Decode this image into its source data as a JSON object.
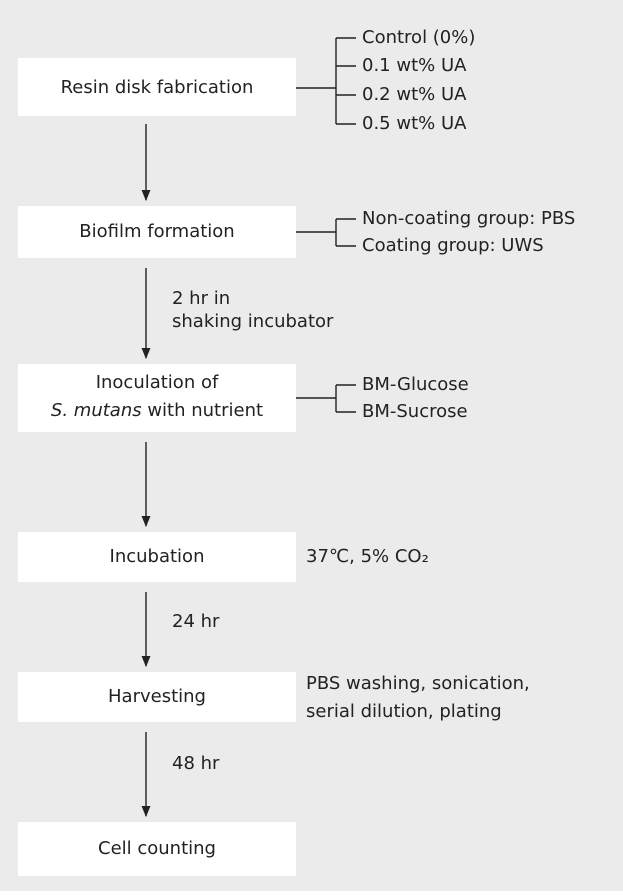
{
  "steps": [
    {
      "label": "Resin disk fabrication",
      "branches": [
        "Control (0%)",
        "0.1 wt% UA",
        "0.2 wt% UA",
        "0.5 wt% UA"
      ]
    },
    {
      "label": "Biofilm formation",
      "branches": [
        "Non-coating group: PBS",
        "Coating group: UWS"
      ]
    },
    {
      "label": [
        "Inoculation of",
        [
          "S. mutans",
          " with nutrient"
        ]
      ],
      "branches": [
        "BM-Glucose",
        "BM-Sucrose"
      ]
    },
    {
      "label": "Incubation",
      "note": [
        "37℃, 5% CO₂"
      ]
    },
    {
      "label": "Harvesting",
      "note": [
        "PBS washing, sonication,",
        "serial dilution, plating"
      ]
    },
    {
      "label": "Cell counting"
    }
  ],
  "arrows": [
    [],
    [
      "2 hr in",
      "shaking incubator"
    ],
    [],
    [
      "24 hr"
    ],
    [
      "48 hr"
    ]
  ]
}
